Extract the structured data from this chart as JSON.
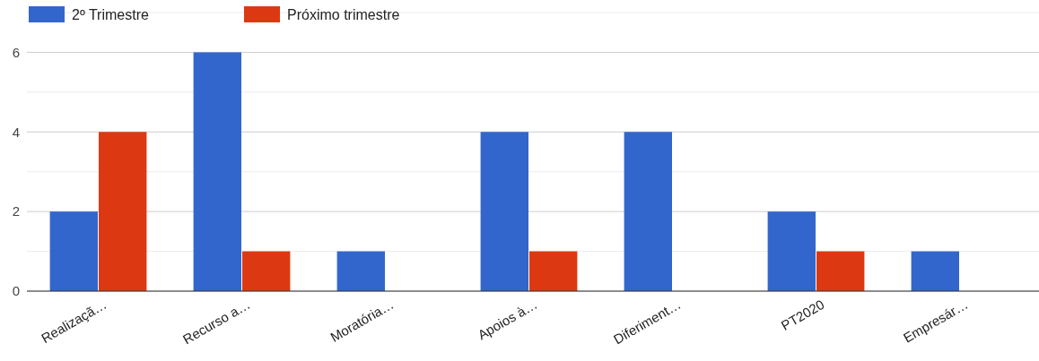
{
  "chart_data": {
    "type": "bar",
    "categories": [
      "Realizaçã…",
      "Recurso a…",
      "Moratória…",
      "Apoios à…",
      "Diferiment…",
      "PT2020",
      "Empresár…"
    ],
    "series": [
      {
        "name": "2º Trimestre",
        "color": "#3366cc",
        "values": [
          2,
          6,
          1,
          4,
          4,
          2,
          1
        ]
      },
      {
        "name": "Próximo trimestre",
        "color": "#dc3912",
        "values": [
          4,
          1,
          null,
          1,
          null,
          1,
          null
        ]
      }
    ],
    "ylim": [
      0,
      7
    ],
    "yticks": [
      0,
      {
        "value": 1,
        "label": null
      },
      2,
      {
        "value": 3,
        "label": null
      },
      4,
      {
        "value": 5,
        "label": null
      },
      6,
      {
        "value": 7,
        "label": null
      }
    ],
    "grid": "y",
    "legend": "top left"
  }
}
